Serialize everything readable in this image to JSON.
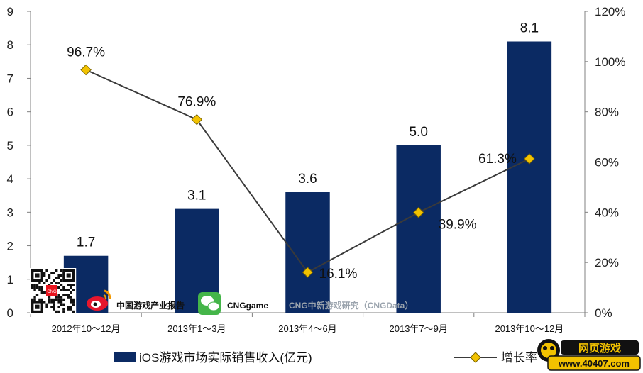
{
  "chart_data": {
    "type": "bar",
    "categories": [
      "2012年10～12月",
      "2013年1～3月",
      "2013年4～6月",
      "2013年7～9月",
      "2013年10～12月"
    ],
    "series": [
      {
        "name": "iOS游戏市场实际销售收入(亿元)",
        "type": "bar",
        "axis": "left",
        "color": "#0b2a63",
        "values": [
          1.7,
          3.1,
          3.6,
          5.0,
          8.1
        ],
        "labels": [
          "1.7",
          "3.1",
          "3.6",
          "5.0",
          "8.1"
        ]
      },
      {
        "name": "增长率",
        "type": "line",
        "axis": "right",
        "color": "#3a3a3a",
        "marker_color": "#f2c200",
        "values": [
          96.7,
          76.9,
          16.1,
          39.9,
          61.3
        ],
        "labels": [
          "96.7%",
          "76.9%",
          "16.1%",
          "39.9%",
          "61.3%"
        ]
      }
    ],
    "y_left": {
      "min": 0,
      "max": 9,
      "ticks": [
        "0",
        "1",
        "2",
        "3",
        "4",
        "5",
        "6",
        "7",
        "8",
        "9"
      ]
    },
    "y_right": {
      "min": 0,
      "max": 120,
      "ticks": [
        "0%",
        "20%",
        "40%",
        "60%",
        "80%",
        "100%",
        "120%"
      ]
    },
    "grid": false,
    "legend": "bottom"
  },
  "watermark": {
    "weibo_text": "中国游戏产业报告",
    "wechat_text": "CNGgame",
    "org_text": "CNG中新游戏研究（CNGData）",
    "qr_badge": "CNG",
    "logo_cn": "网页游戏",
    "logo_url": "www.40407.com"
  },
  "colors": {
    "bar": "#0b2a63",
    "line": "#3a3a3a",
    "marker": "#f2c200",
    "axis": "#808080"
  }
}
